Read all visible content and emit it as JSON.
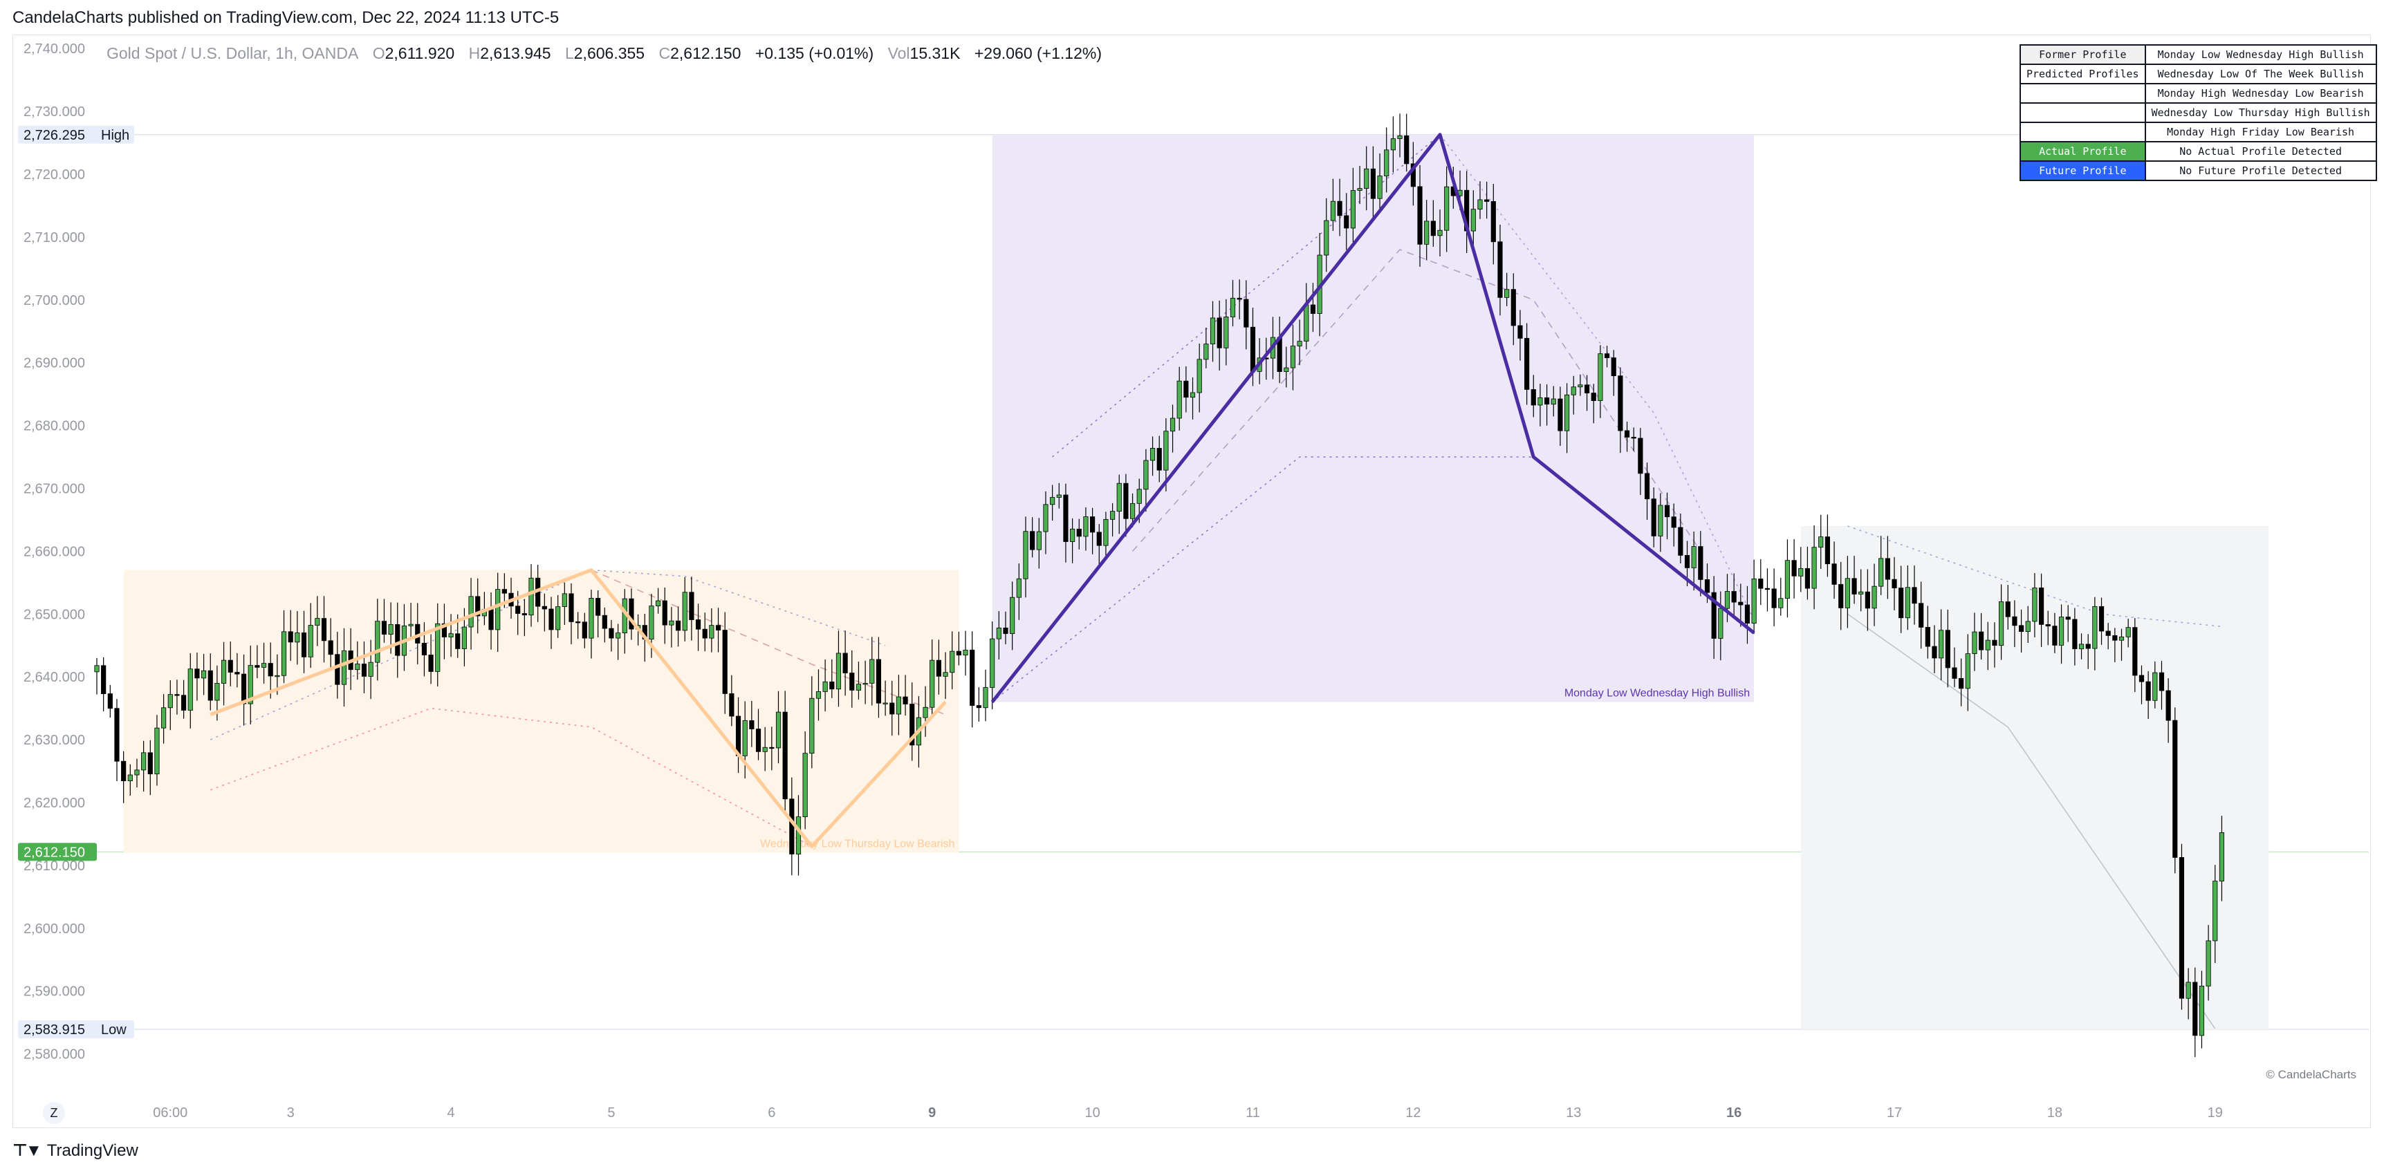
{
  "header": {
    "publish_text": "CandelaCharts published on TradingView.com, Dec 22, 2024 11:13 UTC-5"
  },
  "legend": {
    "symbol": "Gold Spot / U.S. Dollar, 1h, OANDA",
    "o_label": "O",
    "o_value": "2,611.920",
    "h_label": "H",
    "h_value": "2,613.945",
    "l_label": "L",
    "l_value": "2,606.355",
    "c_label": "C",
    "c_value": "2,612.150",
    "change": "+0.135 (+0.01%)",
    "vol_label": "Vol",
    "vol_value": "15.31K",
    "vol_change": "+29.060 (+1.12%)"
  },
  "table": {
    "rows": [
      {
        "label": "Former Profile",
        "value": "Monday Low Wednesday High Bullish",
        "style": "hdr"
      },
      {
        "label": "Predicted Profiles",
        "value": "Wednesday Low Of The Week Bullish",
        "style": ""
      },
      {
        "label": "",
        "value": "Monday High Wednesday Low Bearish",
        "style": ""
      },
      {
        "label": "",
        "value": "Wednesday Low Thursday High Bullish",
        "style": ""
      },
      {
        "label": "",
        "value": "Monday High Friday Low Bearish",
        "style": ""
      },
      {
        "label": "Actual Profile",
        "value": "No Actual Profile Detected",
        "style": "actual"
      },
      {
        "label": "Future Profile",
        "value": "No Future Profile Detected",
        "style": "future"
      }
    ]
  },
  "footer": {
    "logo_text": "TradingView",
    "watermark": "© CandelaCharts",
    "zoom_label": "Z"
  },
  "chart_data": {
    "type": "candlestick",
    "ylim": [
      2575,
      2742
    ],
    "x_range": [
      0,
      340
    ],
    "y_ticks": [
      2740,
      2730,
      2720,
      2710,
      2700,
      2690,
      2680,
      2670,
      2660,
      2650,
      2640,
      2630,
      2620,
      2610,
      2600,
      2590,
      2580
    ],
    "x_ticks": [
      {
        "label": "06:00",
        "x": 11,
        "bold": false
      },
      {
        "label": "3",
        "x": 29,
        "bold": false
      },
      {
        "label": "4",
        "x": 53,
        "bold": false
      },
      {
        "label": "5",
        "x": 77,
        "bold": false
      },
      {
        "label": "6",
        "x": 101,
        "bold": false
      },
      {
        "label": "9",
        "x": 125,
        "bold": true
      },
      {
        "label": "10",
        "x": 149,
        "bold": false
      },
      {
        "label": "11",
        "x": 173,
        "bold": false
      },
      {
        "label": "12",
        "x": 197,
        "bold": false
      },
      {
        "label": "13",
        "x": 221,
        "bold": false
      },
      {
        "label": "16",
        "x": 245,
        "bold": true
      },
      {
        "label": "17",
        "x": 269,
        "bold": false
      },
      {
        "label": "18",
        "x": 293,
        "bold": false
      },
      {
        "label": "19",
        "x": 317,
        "bold": false
      }
    ],
    "price_labels": [
      {
        "value": 2726.295,
        "text": "2,726.295",
        "tag": "High",
        "style": "level"
      },
      {
        "value": 2612.15,
        "text": "2,612.150",
        "tag": "",
        "style": "current"
      },
      {
        "value": 2583.915,
        "text": "2,583.915",
        "tag": "Low",
        "style": "level"
      }
    ],
    "key_points": [
      [
        0,
        2640
      ],
      [
        5,
        2622
      ],
      [
        12,
        2638
      ],
      [
        18,
        2640
      ],
      [
        24,
        2640
      ],
      [
        32,
        2648
      ],
      [
        38,
        2640
      ],
      [
        44,
        2648
      ],
      [
        50,
        2644
      ],
      [
        58,
        2651
      ],
      [
        64,
        2652
      ],
      [
        70,
        2650
      ],
      [
        78,
        2648
      ],
      [
        86,
        2650
      ],
      [
        92,
        2648
      ],
      [
        96,
        2630
      ],
      [
        102,
        2630
      ],
      [
        104,
        2613
      ],
      [
        108,
        2640
      ],
      [
        114,
        2640
      ],
      [
        118,
        2637
      ],
      [
        122,
        2632
      ],
      [
        128,
        2645
      ],
      [
        132,
        2636
      ],
      [
        136,
        2650
      ],
      [
        142,
        2668
      ],
      [
        148,
        2662
      ],
      [
        156,
        2670
      ],
      [
        164,
        2688
      ],
      [
        170,
        2700
      ],
      [
        174,
        2690
      ],
      [
        180,
        2692
      ],
      [
        184,
        2712
      ],
      [
        190,
        2718
      ],
      [
        194,
        2724
      ],
      [
        196,
        2726
      ],
      [
        198,
        2708
      ],
      [
        202,
        2716
      ],
      [
        208,
        2714
      ],
      [
        212,
        2695
      ],
      [
        216,
        2682
      ],
      [
        222,
        2685
      ],
      [
        226,
        2690
      ],
      [
        232,
        2668
      ],
      [
        238,
        2660
      ],
      [
        242,
        2650
      ],
      [
        246,
        2652
      ],
      [
        252,
        2654
      ],
      [
        258,
        2660
      ],
      [
        262,
        2652
      ],
      [
        268,
        2656
      ],
      [
        272,
        2650
      ],
      [
        278,
        2640
      ],
      [
        284,
        2648
      ],
      [
        290,
        2650
      ],
      [
        296,
        2646
      ],
      [
        302,
        2648
      ],
      [
        306,
        2640
      ],
      [
        310,
        2635
      ],
      [
        312,
        2590
      ],
      [
        314,
        2584
      ],
      [
        316,
        2600
      ],
      [
        318,
        2612
      ]
    ],
    "zones": [
      {
        "x0": 4,
        "x1": 129,
        "y0": 2612,
        "y1": 2657,
        "color": "#fff4e8",
        "label": "Wednesday Low Thursday Low Bearish",
        "label_color": "#ffcc99"
      },
      {
        "x0": 134,
        "x1": 248,
        "y0": 2636,
        "y1": 2726.295,
        "color": "#ede8f7",
        "label": "Monday Low Wednesday High Bullish",
        "label_color": "#5e35b1"
      },
      {
        "x0": 255,
        "x1": 325,
        "y0": 2583.915,
        "y1": 2664,
        "color": "#f3f4f6",
        "label": "",
        "label_color": "#9598a1"
      }
    ],
    "profile_paths": [
      {
        "points": [
          [
            17,
            2634
          ],
          [
            74,
            2657
          ],
          [
            107,
            2613
          ],
          [
            127,
            2636
          ]
        ],
        "color": "#ffcc99",
        "width": 5
      },
      {
        "points": [
          [
            134,
            2636
          ],
          [
            201,
            2726.295
          ],
          [
            215,
            2675
          ],
          [
            248,
            2647
          ]
        ],
        "color": "#4a2ca3",
        "width": 5
      }
    ],
    "guide_lines": [
      {
        "points": [
          [
            17,
            2630
          ],
          [
            74,
            2657
          ],
          [
            88,
            2656
          ],
          [
            118,
            2645
          ]
        ],
        "color": "#9fa8da",
        "dash": "3,6"
      },
      {
        "points": [
          [
            17,
            2622
          ],
          [
            50,
            2635
          ],
          [
            74,
            2632
          ],
          [
            107,
            2613
          ]
        ],
        "color": "#f48fb1",
        "dash": "3,6"
      },
      {
        "points": [
          [
            74,
            2657
          ],
          [
            107,
            2642
          ],
          [
            127,
            2634
          ]
        ],
        "color": "#d7a3a3",
        "dash": "10,8"
      },
      {
        "points": [
          [
            143,
            2675
          ],
          [
            201,
            2726.295
          ]
        ],
        "color": "#9575cd",
        "dash": "3,6"
      },
      {
        "points": [
          [
            134,
            2636
          ],
          [
            180,
            2675
          ],
          [
            215,
            2675
          ],
          [
            248,
            2647
          ]
        ],
        "color": "#9575cd",
        "dash": "3,6"
      },
      {
        "points": [
          [
            201,
            2726.295
          ],
          [
            233,
            2682
          ],
          [
            248,
            2649
          ]
        ],
        "color": "#b39ddb",
        "dash": "3,6"
      },
      {
        "points": [
          [
            155,
            2660
          ],
          [
            195,
            2708
          ],
          [
            215,
            2700
          ],
          [
            240,
            2660
          ]
        ],
        "color": "#b0a0c8",
        "dash": "10,8"
      },
      {
        "points": [
          [
            262,
            2664
          ],
          [
            300,
            2650
          ],
          [
            318,
            2648
          ]
        ],
        "color": "#9fa8da",
        "dash": "3,6"
      },
      {
        "points": [
          [
            262,
            2650
          ],
          [
            286,
            2632
          ],
          [
            317,
            2584
          ]
        ],
        "color": "#c0c4d0",
        "dash": ""
      }
    ]
  }
}
